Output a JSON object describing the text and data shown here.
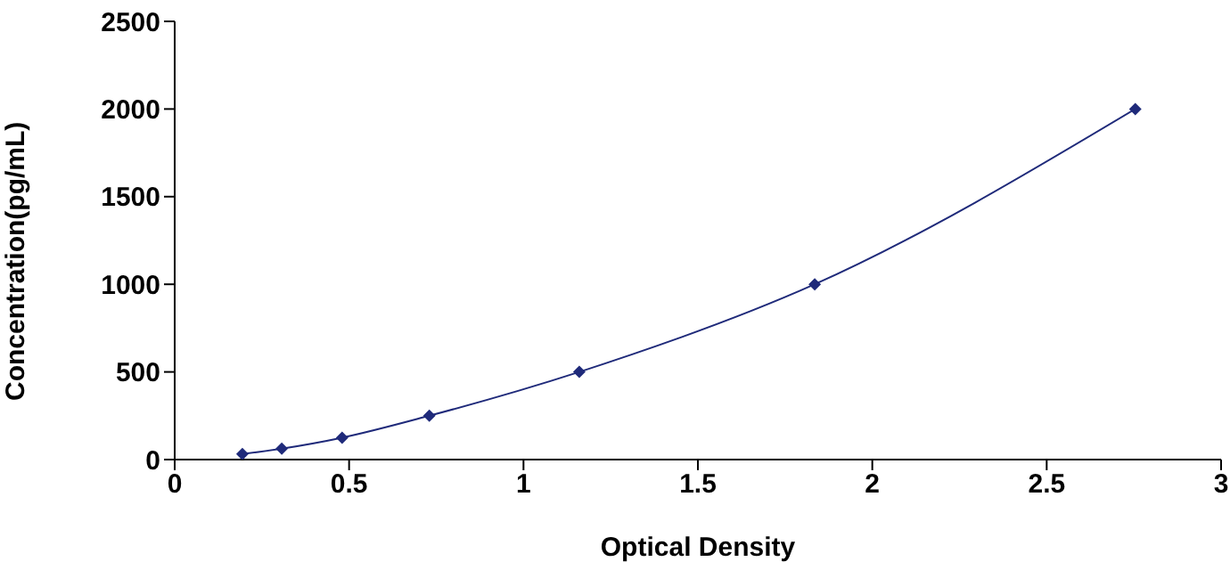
{
  "chart_data": {
    "type": "line",
    "xlabel": "Optical Density",
    "ylabel": "Concentration(pg/mL)",
    "x": [
      0.194,
      0.307,
      0.48,
      0.73,
      1.16,
      1.835,
      2.754
    ],
    "series": [
      {
        "color": "#1f2a7a",
        "values": [
          31.25,
          62.5,
          125,
          250,
          500,
          1000,
          2000
        ]
      }
    ],
    "xlim": [
      0,
      3
    ],
    "xticks": [
      0,
      0.5,
      1,
      1.5,
      2,
      2.5,
      3
    ],
    "ylim": [
      0,
      2500
    ],
    "yticks": [
      0,
      500,
      1000,
      1500,
      2000,
      2500
    ],
    "grid": false,
    "legend": false,
    "marker": "diamond",
    "line_style": "solid"
  }
}
